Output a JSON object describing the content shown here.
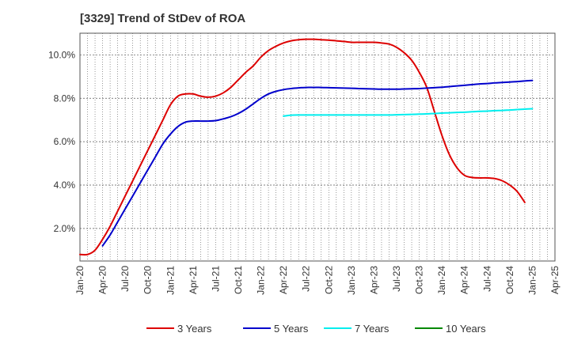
{
  "chart_data": {
    "type": "line",
    "title": "[3329]  Trend of StDev of ROA",
    "xlabel": "",
    "ylabel": "",
    "ylim": [
      0.5,
      11.0
    ],
    "xlim": [
      "2020-01",
      "2025-04"
    ],
    "grid": true,
    "legend_position": "bottom",
    "y_ticks": [
      2.0,
      4.0,
      6.0,
      8.0,
      10.0
    ],
    "y_tick_labels": [
      "2.0%",
      "4.0%",
      "6.0%",
      "8.0%",
      "10.0%"
    ],
    "x_tick_labels": [
      "Jan-20",
      "Apr-20",
      "Jul-20",
      "Oct-20",
      "Jan-21",
      "Apr-21",
      "Jul-21",
      "Oct-21",
      "Jan-22",
      "Apr-22",
      "Jul-22",
      "Oct-22",
      "Jan-23",
      "Apr-23",
      "Jul-23",
      "Oct-23",
      "Jan-24",
      "Apr-24",
      "Jul-24",
      "Oct-24",
      "Jan-25",
      "Apr-25"
    ],
    "series": [
      {
        "name": "3 Years",
        "color": "#dd0000",
        "points": [
          [
            "2020-01",
            0.8
          ],
          [
            "2020-02",
            0.8
          ],
          [
            "2020-03",
            1.0
          ],
          [
            "2020-04",
            1.5
          ],
          [
            "2020-05",
            2.1
          ],
          [
            "2020-06",
            2.8
          ],
          [
            "2020-07",
            3.5
          ],
          [
            "2020-08",
            4.2
          ],
          [
            "2020-09",
            4.9
          ],
          [
            "2020-10",
            5.6
          ],
          [
            "2020-11",
            6.3
          ],
          [
            "2020-12",
            7.0
          ],
          [
            "2021-01",
            7.7
          ],
          [
            "2021-02",
            8.1
          ],
          [
            "2021-03",
            8.2
          ],
          [
            "2021-04",
            8.2
          ],
          [
            "2021-05",
            8.1
          ],
          [
            "2021-06",
            8.05
          ],
          [
            "2021-07",
            8.1
          ],
          [
            "2021-08",
            8.25
          ],
          [
            "2021-09",
            8.5
          ],
          [
            "2021-10",
            8.85
          ],
          [
            "2021-11",
            9.2
          ],
          [
            "2021-12",
            9.5
          ],
          [
            "2022-01",
            9.9
          ],
          [
            "2022-02",
            10.2
          ],
          [
            "2022-03",
            10.4
          ],
          [
            "2022-04",
            10.55
          ],
          [
            "2022-05",
            10.65
          ],
          [
            "2022-06",
            10.7
          ],
          [
            "2022-07",
            10.72
          ],
          [
            "2022-08",
            10.72
          ],
          [
            "2022-09",
            10.7
          ],
          [
            "2022-10",
            10.68
          ],
          [
            "2022-11",
            10.65
          ],
          [
            "2022-12",
            10.62
          ],
          [
            "2023-01",
            10.58
          ],
          [
            "2023-02",
            10.58
          ],
          [
            "2023-03",
            10.58
          ],
          [
            "2023-04",
            10.58
          ],
          [
            "2023-05",
            10.55
          ],
          [
            "2023-06",
            10.5
          ],
          [
            "2023-07",
            10.35
          ],
          [
            "2023-08",
            10.1
          ],
          [
            "2023-09",
            9.75
          ],
          [
            "2023-10",
            9.2
          ],
          [
            "2023-11",
            8.5
          ],
          [
            "2023-12",
            7.4
          ],
          [
            "2024-01",
            6.3
          ],
          [
            "2024-02",
            5.4
          ],
          [
            "2024-03",
            4.8
          ],
          [
            "2024-04",
            4.45
          ],
          [
            "2024-05",
            4.35
          ],
          [
            "2024-06",
            4.33
          ],
          [
            "2024-07",
            4.33
          ],
          [
            "2024-08",
            4.3
          ],
          [
            "2024-09",
            4.2
          ],
          [
            "2024-10",
            4.0
          ],
          [
            "2024-11",
            3.7
          ],
          [
            "2024-12",
            3.2
          ]
        ]
      },
      {
        "name": "5 Years",
        "color": "#0000cc",
        "points": [
          [
            "2020-04",
            1.2
          ],
          [
            "2020-05",
            1.7
          ],
          [
            "2020-06",
            2.3
          ],
          [
            "2020-07",
            2.9
          ],
          [
            "2020-08",
            3.5
          ],
          [
            "2020-09",
            4.1
          ],
          [
            "2020-10",
            4.7
          ],
          [
            "2020-11",
            5.3
          ],
          [
            "2020-12",
            5.9
          ],
          [
            "2021-01",
            6.35
          ],
          [
            "2021-02",
            6.7
          ],
          [
            "2021-03",
            6.9
          ],
          [
            "2021-04",
            6.95
          ],
          [
            "2021-05",
            6.95
          ],
          [
            "2021-06",
            6.95
          ],
          [
            "2021-07",
            6.97
          ],
          [
            "2021-08",
            7.05
          ],
          [
            "2021-09",
            7.15
          ],
          [
            "2021-10",
            7.3
          ],
          [
            "2021-11",
            7.5
          ],
          [
            "2021-12",
            7.75
          ],
          [
            "2022-01",
            8.0
          ],
          [
            "2022-02",
            8.2
          ],
          [
            "2022-03",
            8.32
          ],
          [
            "2022-04",
            8.4
          ],
          [
            "2022-05",
            8.45
          ],
          [
            "2022-06",
            8.48
          ],
          [
            "2022-07",
            8.5
          ],
          [
            "2022-08",
            8.5
          ],
          [
            "2022-09",
            8.5
          ],
          [
            "2022-10",
            8.49
          ],
          [
            "2022-11",
            8.48
          ],
          [
            "2022-12",
            8.47
          ],
          [
            "2023-01",
            8.46
          ],
          [
            "2023-02",
            8.45
          ],
          [
            "2023-03",
            8.44
          ],
          [
            "2023-04",
            8.43
          ],
          [
            "2023-05",
            8.42
          ],
          [
            "2023-06",
            8.42
          ],
          [
            "2023-07",
            8.42
          ],
          [
            "2023-08",
            8.43
          ],
          [
            "2023-09",
            8.44
          ],
          [
            "2023-10",
            8.45
          ],
          [
            "2023-11",
            8.47
          ],
          [
            "2023-12",
            8.49
          ],
          [
            "2024-01",
            8.51
          ],
          [
            "2024-02",
            8.54
          ],
          [
            "2024-03",
            8.57
          ],
          [
            "2024-04",
            8.6
          ],
          [
            "2024-05",
            8.63
          ],
          [
            "2024-06",
            8.66
          ],
          [
            "2024-07",
            8.68
          ],
          [
            "2024-08",
            8.71
          ],
          [
            "2024-09",
            8.73
          ],
          [
            "2024-10",
            8.75
          ],
          [
            "2024-11",
            8.77
          ],
          [
            "2024-12",
            8.8
          ],
          [
            "2025-01",
            8.82
          ]
        ]
      },
      {
        "name": "7 Years",
        "color": "#00eeee",
        "points": [
          [
            "2022-04",
            7.18
          ],
          [
            "2022-05",
            7.22
          ],
          [
            "2022-06",
            7.23
          ],
          [
            "2022-07",
            7.23
          ],
          [
            "2022-08",
            7.23
          ],
          [
            "2022-09",
            7.23
          ],
          [
            "2022-10",
            7.23
          ],
          [
            "2022-11",
            7.23
          ],
          [
            "2022-12",
            7.23
          ],
          [
            "2023-01",
            7.23
          ],
          [
            "2023-02",
            7.23
          ],
          [
            "2023-03",
            7.23
          ],
          [
            "2023-04",
            7.23
          ],
          [
            "2023-05",
            7.23
          ],
          [
            "2023-06",
            7.23
          ],
          [
            "2023-07",
            7.24
          ],
          [
            "2023-08",
            7.25
          ],
          [
            "2023-09",
            7.26
          ],
          [
            "2023-10",
            7.27
          ],
          [
            "2023-11",
            7.28
          ],
          [
            "2023-12",
            7.3
          ],
          [
            "2024-01",
            7.32
          ],
          [
            "2024-02",
            7.33
          ],
          [
            "2024-03",
            7.35
          ],
          [
            "2024-04",
            7.36
          ],
          [
            "2024-05",
            7.38
          ],
          [
            "2024-06",
            7.4
          ],
          [
            "2024-07",
            7.41
          ],
          [
            "2024-08",
            7.43
          ],
          [
            "2024-09",
            7.44
          ],
          [
            "2024-10",
            7.46
          ],
          [
            "2024-11",
            7.48
          ],
          [
            "2024-12",
            7.5
          ],
          [
            "2025-01",
            7.52
          ]
        ]
      },
      {
        "name": "10 Years",
        "color": "#008800",
        "points": []
      }
    ]
  }
}
